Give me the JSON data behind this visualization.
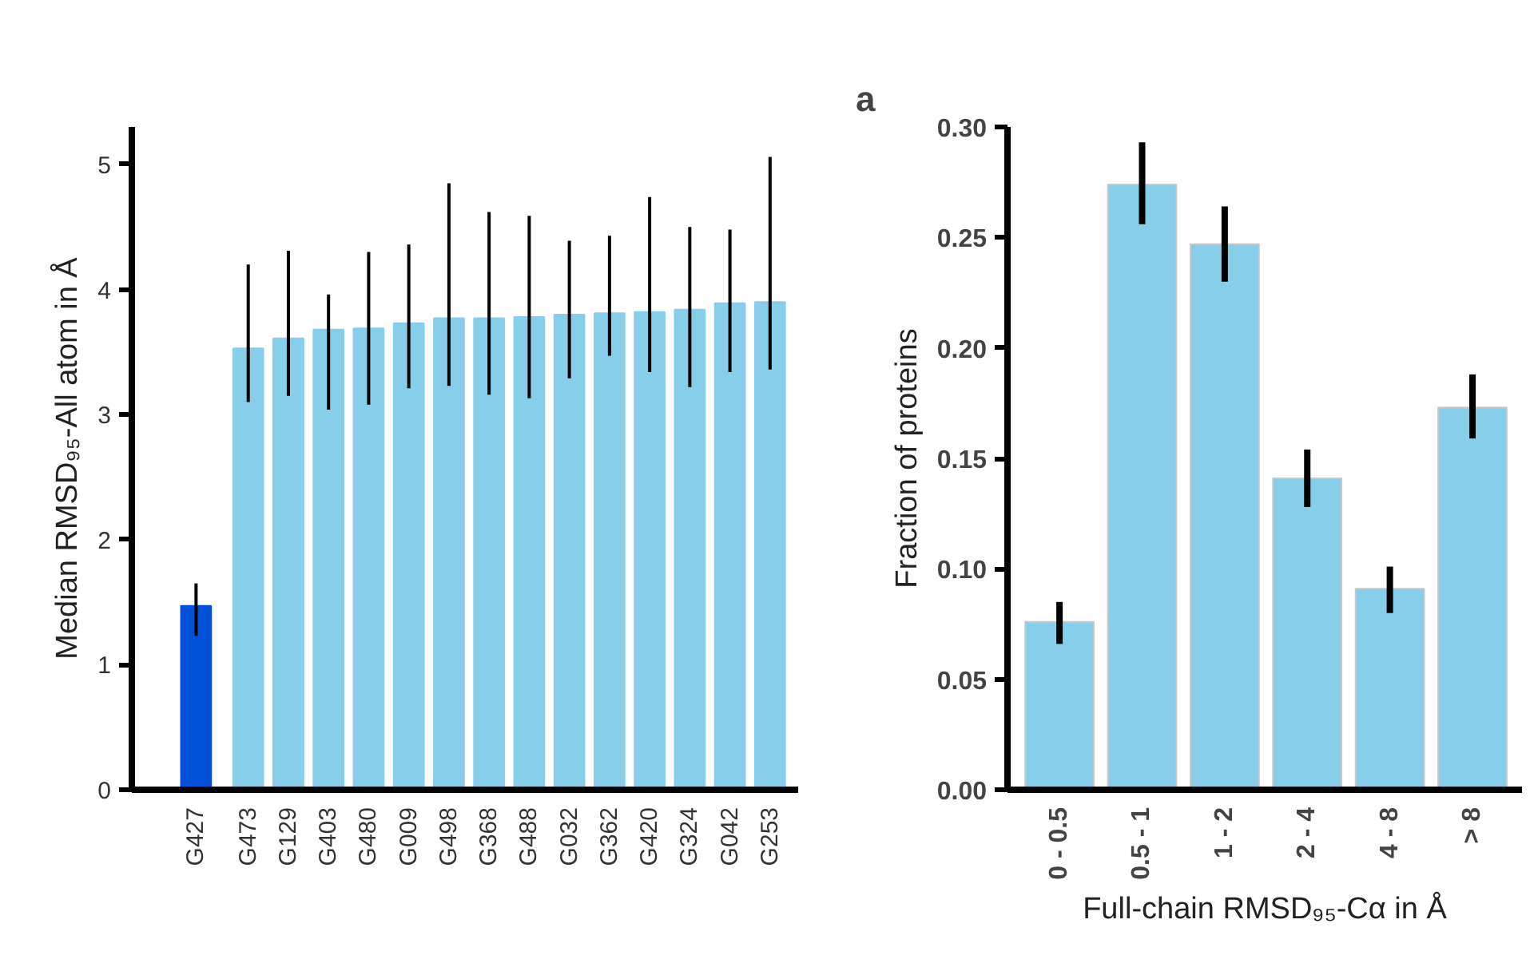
{
  "chart_data": [
    {
      "type": "bar",
      "ylabel": "Median RMSD₉₅-All atom in Å",
      "categories": [
        "G427",
        "G473",
        "G129",
        "G403",
        "G480",
        "G009",
        "G498",
        "G368",
        "G488",
        "G032",
        "G362",
        "G420",
        "G324",
        "G042",
        "G253"
      ],
      "values": [
        1.47,
        3.53,
        3.61,
        3.68,
        3.69,
        3.73,
        3.77,
        3.77,
        3.78,
        3.8,
        3.81,
        3.82,
        3.84,
        3.89,
        3.9
      ],
      "colors": [
        "#0050d8",
        "#87ceeb",
        "#87ceeb",
        "#87ceeb",
        "#87ceeb",
        "#87ceeb",
        "#87ceeb",
        "#87ceeb",
        "#87ceeb",
        "#87ceeb",
        "#87ceeb",
        "#87ceeb",
        "#87ceeb",
        "#87ceeb",
        "#87ceeb"
      ],
      "errors": [
        [
          1.23,
          1.65
        ],
        [
          3.1,
          4.2
        ],
        [
          3.15,
          4.31
        ],
        [
          3.04,
          3.96
        ],
        [
          3.08,
          4.3
        ],
        [
          3.21,
          4.36
        ],
        [
          3.23,
          4.85
        ],
        [
          3.16,
          4.62
        ],
        [
          3.13,
          4.59
        ],
        [
          3.29,
          4.39
        ],
        [
          3.47,
          4.43
        ],
        [
          3.34,
          4.74
        ],
        [
          3.22,
          4.5
        ],
        [
          3.34,
          4.48
        ],
        [
          3.36,
          5.06
        ]
      ],
      "ylim": [
        0,
        5.3
      ],
      "yticks": [
        0,
        1,
        2,
        3,
        4,
        5
      ]
    },
    {
      "type": "bar",
      "title": "a",
      "xlabel": "Full-chain RMSD₉₅-Cα in Å",
      "ylabel": "Fraction of proteins",
      "categories": [
        "0 - 0.5",
        "0.5 - 1",
        "1 - 2",
        "2 - 4",
        "4 - 8",
        "> 8"
      ],
      "values": [
        0.076,
        0.274,
        0.247,
        0.141,
        0.091,
        0.173
      ],
      "color": "#87ceeb",
      "errors": [
        [
          0.066,
          0.085
        ],
        [
          0.256,
          0.293
        ],
        [
          0.23,
          0.264
        ],
        [
          0.128,
          0.154
        ],
        [
          0.08,
          0.101
        ],
        [
          0.159,
          0.188
        ]
      ],
      "ylim": [
        0,
        0.3
      ],
      "yticks": [
        {
          "value": 0,
          "label": "0.00"
        },
        {
          "value": 0.05,
          "label": "0.05"
        },
        {
          "value": 0.1,
          "label": "0.10"
        },
        {
          "value": 0.15,
          "label": "0.15"
        },
        {
          "value": 0.2,
          "label": "0.20"
        },
        {
          "value": 0.25,
          "label": "0.25"
        },
        {
          "value": 0.3,
          "label": "0.30"
        }
      ]
    }
  ]
}
